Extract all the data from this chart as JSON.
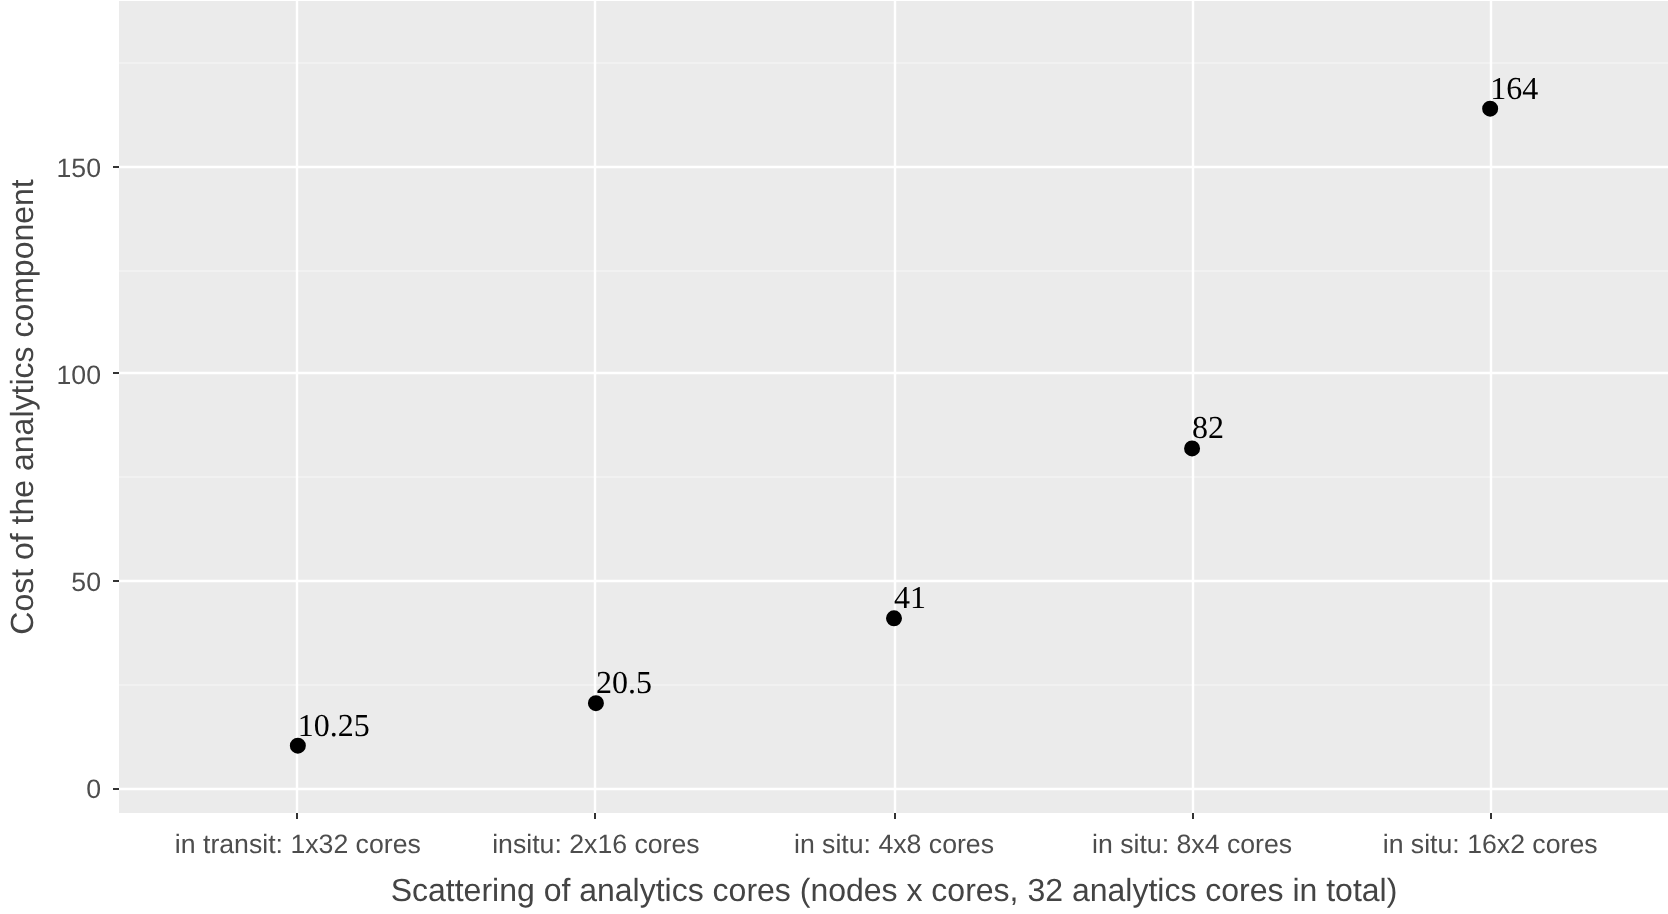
{
  "chart_data": {
    "type": "scatter",
    "xlabel": "Scattering of analytics cores (nodes x cores, 32 analytics cores in total)",
    "ylabel": "Cost of the analytics component",
    "categories": [
      "in transit: 1x32 cores",
      "insitu: 2x16 cores",
      "in situ: 4x8 cores",
      "in situ: 8x4 cores",
      "in situ: 16x2 cores"
    ],
    "values": [
      10.25,
      20.5,
      41,
      82,
      164
    ],
    "color": "#000000",
    "marker": "circle",
    "data_labels": true,
    "ylim": [
      -6,
      190
    ],
    "yticks": [
      0,
      50,
      100,
      150
    ],
    "grid": true
  }
}
